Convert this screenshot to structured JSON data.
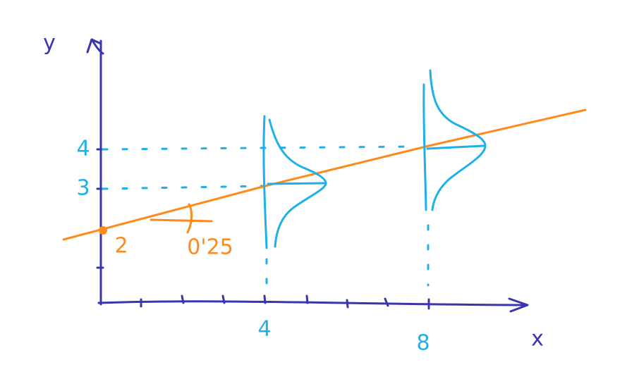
{
  "axes": {
    "y_label": "y",
    "x_label": "x"
  },
  "y_labels": [
    "4",
    "3"
  ],
  "x_labels": [
    "4",
    "8"
  ],
  "intercept_label": "2",
  "slope_label": "0'25"
}
